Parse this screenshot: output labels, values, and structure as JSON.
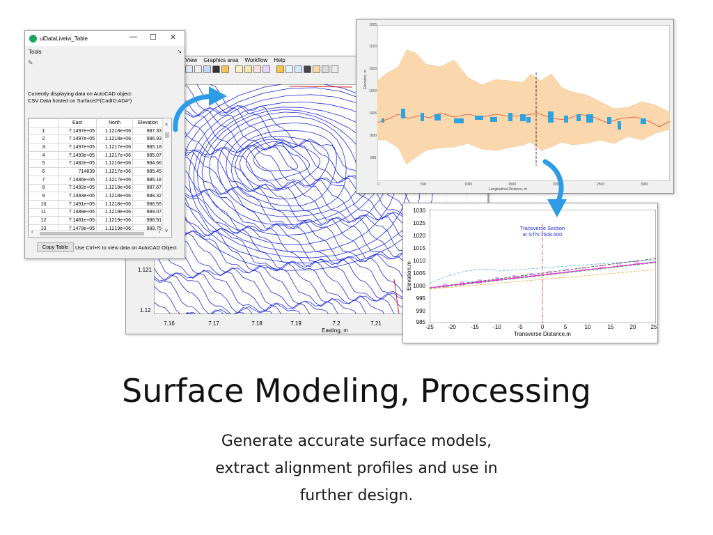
{
  "contour_window": {
    "menu": [
      "View",
      "Graphics area",
      "Workflow",
      "Help"
    ],
    "y_ticks": [
      "1.121",
      "1.12"
    ],
    "x_ticks": [
      "7.16",
      "7.17",
      "7.18",
      "7.19",
      "7.2",
      "7.21"
    ],
    "x_label": "Easting, m",
    "line_color": "#1f2bd6",
    "boundary_color": "#e21b1b"
  },
  "table_window": {
    "title": "uiDataLiveiw_Table",
    "minimize_icon": "—",
    "maximize_icon": "☐",
    "close_icon": "✕",
    "menu_tools": "Tools",
    "info_line1": "Currently displaying data on AutoCAD object:",
    "info_line2": "CSV Data hosted on Surface2*(CadID:AD4*)",
    "columns": [
      "East",
      "North",
      "Elevation"
    ],
    "rows": [
      [
        "1",
        "7.1497e+05",
        "1.1218e+06",
        "987.33"
      ],
      [
        "2",
        "7.1497e+05",
        "1.1218e+06",
        "986.93"
      ],
      [
        "3",
        "7.1497e+05",
        "1.1217e+06",
        "985.18"
      ],
      [
        "4",
        "7.1493e+05",
        "1.1217e+06",
        "985.07"
      ],
      [
        "5",
        "7.1482e+05",
        "1.1216e+06",
        "984.66"
      ],
      [
        "6",
        "714839",
        "1.1217e+06",
        "985.45"
      ],
      [
        "7",
        "7.1486e+05",
        "1.1217e+06",
        "986.18"
      ],
      [
        "8",
        "7.1492e+05",
        "1.1218e+06",
        "987.67"
      ],
      [
        "9",
        "7.1493e+05",
        "1.1218e+06",
        "988.32"
      ],
      [
        "10",
        "7.1491e+05",
        "1.1218e+06",
        "988.55"
      ],
      [
        "11",
        "7.1488e+05",
        "1.1219e+06",
        "989.07"
      ],
      [
        "12",
        "7.1481e+05",
        "1.1219e+06",
        "988.91"
      ],
      [
        "13",
        "7.1478e+05",
        "1.1219e+06",
        "989.75"
      ]
    ],
    "copy_button": "Copy Table",
    "hint": "Use Ctrl+K to view data on AutoCAD Object."
  },
  "profile_window": {
    "y_ticks": [
      "1025",
      "1020",
      "1015",
      "1010",
      "1005",
      "1000",
      "995"
    ],
    "x_ticks": [
      "0",
      "500",
      "1000",
      "1500",
      "2000",
      "2500",
      "3000"
    ],
    "y_label": "Elevation, m",
    "x_label": "Longitudinal Distance, m",
    "band_color": "#fbd7ad",
    "line_color": "#d94a2a",
    "marker_color": "#2aa4e0"
  },
  "transverse_window": {
    "title_line1": "Transverse Section",
    "title_line2": "at STN:1508.600",
    "y_ticks": [
      "1030",
      "1025",
      "1020",
      "1015",
      "1010",
      "1005",
      "1000",
      "995",
      "990",
      "985"
    ],
    "x_ticks": [
      "-25",
      "-20",
      "-15",
      "-10",
      "-5",
      "0",
      "5",
      "10",
      "15",
      "20",
      "25"
    ],
    "y_label": "Elevation,m",
    "x_label": "Transverse Distance,m"
  },
  "headline": "Surface Modeling, Processing",
  "subtitle": [
    "Generate accurate surface models,",
    "extract alignment profiles and use in",
    "further design."
  ],
  "arrow_color": "#2e9be6"
}
